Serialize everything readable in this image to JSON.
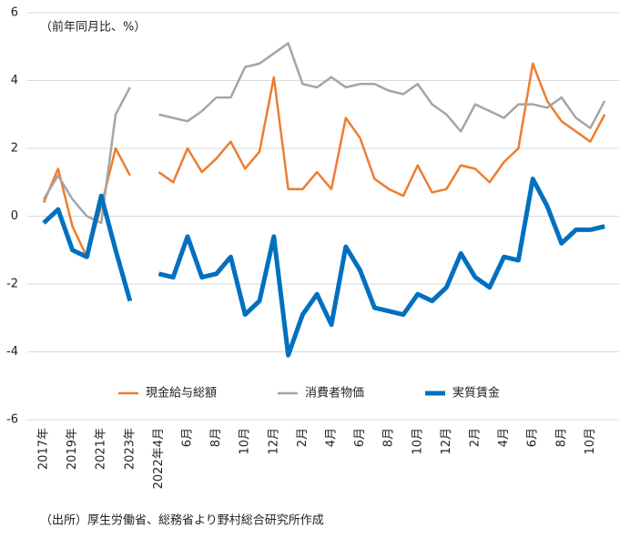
{
  "chart_data": {
    "type": "line",
    "y_label": "（前年同月比、%）",
    "source": "（出所）厚生労働省、総務省より野村総合研究所作成",
    "categories": [
      "2017年",
      null,
      "2019年",
      null,
      "2021年",
      null,
      "2023年",
      null,
      "2022年4月",
      null,
      "6月",
      null,
      "8月",
      null,
      "10月",
      null,
      "12月",
      null,
      "2月",
      null,
      "4月",
      null,
      "6月",
      null,
      "8月",
      null,
      "10月",
      null,
      "12月",
      null,
      "2月",
      null,
      "4月",
      null,
      "6月",
      null,
      "8月",
      null,
      "10月",
      null
    ],
    "series": [
      {
        "name": "現金給与総額",
        "color": "#ed7d31",
        "width": 2.5,
        "values": [
          0.4,
          1.4,
          -0.3,
          -1.2,
          0.3,
          2.0,
          1.2,
          null,
          1.3,
          1.0,
          2.0,
          1.3,
          1.7,
          2.2,
          1.4,
          1.9,
          4.1,
          0.8,
          0.8,
          1.3,
          0.8,
          2.9,
          2.3,
          1.1,
          0.8,
          0.6,
          1.5,
          0.7,
          0.8,
          1.5,
          1.4,
          1.0,
          1.6,
          2.0,
          4.5,
          3.4,
          2.8,
          2.5,
          2.2,
          3.0
        ]
      },
      {
        "name": "消費者物価",
        "color": "#a5a5a5",
        "width": 2.5,
        "values": [
          0.5,
          1.2,
          0.5,
          0.0,
          -0.2,
          3.0,
          3.8,
          null,
          3.0,
          2.9,
          2.8,
          3.1,
          3.5,
          3.5,
          4.4,
          4.5,
          4.8,
          5.1,
          3.9,
          3.8,
          4.1,
          3.8,
          3.9,
          3.9,
          3.7,
          3.6,
          3.9,
          3.3,
          3.0,
          2.5,
          3.3,
          3.1,
          2.9,
          3.3,
          3.3,
          3.2,
          3.5,
          2.9,
          2.6,
          3.4
        ]
      },
      {
        "name": "実質賃金",
        "color": "#0070c0",
        "width": 5,
        "values": [
          -0.2,
          0.2,
          -1.0,
          -1.2,
          0.6,
          -1.0,
          -2.5,
          null,
          -1.7,
          -1.8,
          -0.6,
          -1.8,
          -1.7,
          -1.2,
          -2.9,
          -2.5,
          -0.6,
          -4.1,
          -2.9,
          -2.3,
          -3.2,
          -0.9,
          -1.6,
          -2.7,
          -2.8,
          -2.9,
          -2.3,
          -2.5,
          -2.1,
          -1.1,
          -1.8,
          -2.1,
          -1.2,
          -1.3,
          1.1,
          0.3,
          -0.8,
          -0.4,
          -0.4,
          -0.3
        ]
      }
    ],
    "ylim": [
      -6,
      6
    ],
    "yticks": [
      -6,
      -4,
      -2,
      0,
      2,
      4,
      6
    ],
    "grid": true
  }
}
